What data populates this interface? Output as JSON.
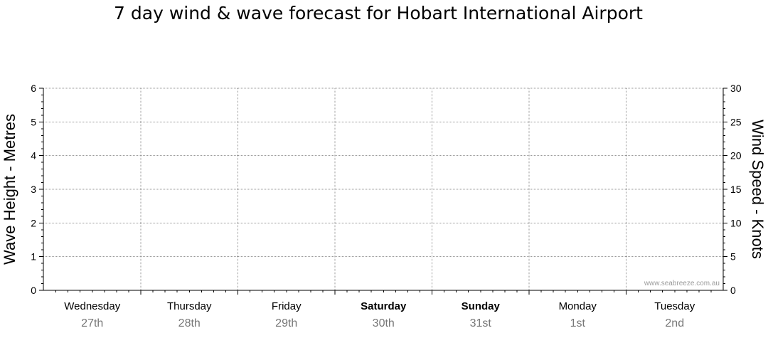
{
  "chart_data": {
    "type": "line",
    "title": "7 day wind & wave forecast for Hobart International Airport",
    "y_left": {
      "label": "Wave Height - Metres",
      "range": [
        0,
        6
      ],
      "ticks": [
        "0",
        "1",
        "2",
        "3",
        "4",
        "5",
        "6"
      ]
    },
    "y_right": {
      "label": "Wind Speed - Knots",
      "range": [
        0,
        30
      ],
      "ticks": [
        "0",
        "5",
        "10",
        "15",
        "20",
        "25",
        "30"
      ]
    },
    "days": [
      {
        "name": "Wednesday",
        "date": "27th",
        "bold": false
      },
      {
        "name": "Thursday",
        "date": "28th",
        "bold": false
      },
      {
        "name": "Friday",
        "date": "29th",
        "bold": false
      },
      {
        "name": "Saturday",
        "date": "30th",
        "bold": true
      },
      {
        "name": "Sunday",
        "date": "31st",
        "bold": true
      },
      {
        "name": "Monday",
        "date": "1st",
        "bold": false
      },
      {
        "name": "Tuesday",
        "date": "2nd",
        "bold": false
      }
    ],
    "series": [],
    "grid": true,
    "watermark": "www.seabreeze.com.au",
    "colors": {
      "grid": "#999999",
      "axis": "#000000",
      "date_text": "#777777",
      "watermark": "#9a9a9a"
    }
  }
}
